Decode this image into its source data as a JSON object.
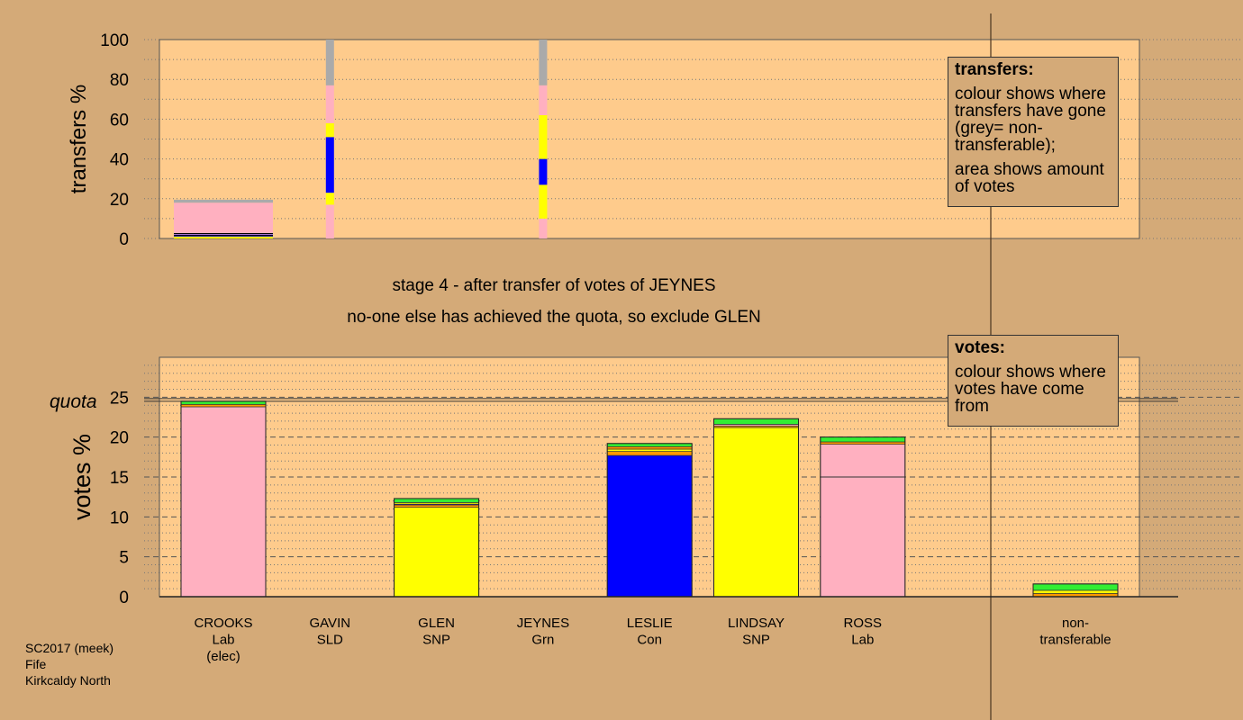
{
  "stage": {
    "line1": "stage 4 - after transfer of votes of JEYNES",
    "line2": "no-one else has achieved the quota, so exclude GLEN"
  },
  "legend_transfers": {
    "title": "transfers:",
    "para1": "colour shows where transfers have gone (grey= non-transferable);",
    "para2": "area shows amount of votes"
  },
  "legend_votes": {
    "title": "votes:",
    "para1": "colour shows where votes have come from"
  },
  "footer": {
    "line1": "SC2017 (meek)",
    "line2": "Fife",
    "line3": "Kirkcaldy North"
  },
  "colors": {
    "background": "#d4aa78",
    "plot_background": "#fecb8c",
    "Lab": "#ffb0c0",
    "SNP": "#ffff00",
    "Con": "#0000ff",
    "Grn": "#33ee33",
    "SLD": "#ff9900",
    "nontransferable": "#aaaaaa"
  },
  "chart_data": [
    {
      "type": "bar",
      "name": "transfers",
      "ylabel": "transfers %",
      "ylim": [
        0,
        100
      ],
      "yticks": [
        0,
        20,
        40,
        60,
        80,
        100
      ],
      "grid": true,
      "transfers": [
        {
          "candidate": "CROOKS",
          "relative_votes": 1.0,
          "segments": [
            {
              "party": "SNP",
              "value": 1
            },
            {
              "party": "Con",
              "value": 1
            },
            {
              "party": "Lab",
              "value": 16
            },
            {
              "party": "nontransferable",
              "value": 1.5
            }
          ]
        },
        {
          "candidate": "GAVIN",
          "relative_votes": 0.1,
          "segments": [
            {
              "party": "Lab",
              "value": 17
            },
            {
              "party": "SNP",
              "value": 6
            },
            {
              "party": "Con",
              "value": 28
            },
            {
              "party": "SNP",
              "value": 7
            },
            {
              "party": "Lab",
              "value": 19
            },
            {
              "party": "nontransferable",
              "value": 23
            }
          ]
        },
        {
          "candidate": "JEYNES",
          "relative_votes": 0.1,
          "segments": [
            {
              "party": "Lab",
              "value": 10
            },
            {
              "party": "SNP",
              "value": 17
            },
            {
              "party": "Con",
              "value": 13
            },
            {
              "party": "SNP",
              "value": 22
            },
            {
              "party": "Lab",
              "value": 15
            },
            {
              "party": "nontransferable",
              "value": 23
            }
          ]
        }
      ]
    },
    {
      "type": "bar",
      "name": "votes",
      "ylabel": "votes %",
      "ylim": [
        0,
        30
      ],
      "yticks": [
        0,
        5,
        10,
        15,
        20,
        25
      ],
      "grid": true,
      "quota": 24.6,
      "quota_label": "quota",
      "candidates": [
        {
          "name": "CROOKS",
          "line2": "Lab",
          "line3": "(elec)",
          "segments": [
            {
              "party": "Lab",
              "value": 23.8
            },
            {
              "party": "SLD",
              "value": 0.3
            },
            {
              "party": "Grn",
              "value": 0.4
            }
          ]
        },
        {
          "name": "GAVIN",
          "line2": "SLD",
          "line3": "",
          "segments": []
        },
        {
          "name": "GLEN",
          "line2": "SNP",
          "line3": "",
          "segments": [
            {
              "party": "SNP",
              "value": 11.2
            },
            {
              "party": "SLD",
              "value": 0.3
            },
            {
              "party": "Con",
              "value": 0.1
            },
            {
              "party": "SNP",
              "value": 0.2
            },
            {
              "party": "Grn",
              "value": 0.5
            }
          ]
        },
        {
          "name": "JEYNES",
          "line2": "Grn",
          "line3": "",
          "segments": []
        },
        {
          "name": "LESLIE",
          "line2": "Con",
          "line3": "",
          "segments": [
            {
              "party": "Con",
              "value": 17.7
            },
            {
              "party": "SLD",
              "value": 0.5
            },
            {
              "party": "SNP",
              "value": 0.3
            },
            {
              "party": "SLD",
              "value": 0.3
            },
            {
              "party": "Grn",
              "value": 0.4
            }
          ]
        },
        {
          "name": "LINDSAY",
          "line2": "SNP",
          "line3": "",
          "segments": [
            {
              "party": "SNP",
              "value": 21.2
            },
            {
              "party": "SLD",
              "value": 0.2
            },
            {
              "party": "Lab",
              "value": 0.2
            },
            {
              "party": "Grn",
              "value": 0.7
            }
          ]
        },
        {
          "name": "ROSS",
          "line2": "Lab",
          "line3": "",
          "boundary": 15.0,
          "segments": [
            {
              "party": "Lab",
              "value": 19.1
            },
            {
              "party": "SLD",
              "value": 0.3
            },
            {
              "party": "Grn",
              "value": 0.6
            }
          ]
        },
        {
          "name": "non-",
          "line2": "transferable",
          "line3": "",
          "segments": [
            {
              "party": "SLD",
              "value": 0.4
            },
            {
              "party": "SNP",
              "value": 0.4
            },
            {
              "party": "Grn",
              "value": 0.8
            }
          ]
        }
      ]
    }
  ]
}
